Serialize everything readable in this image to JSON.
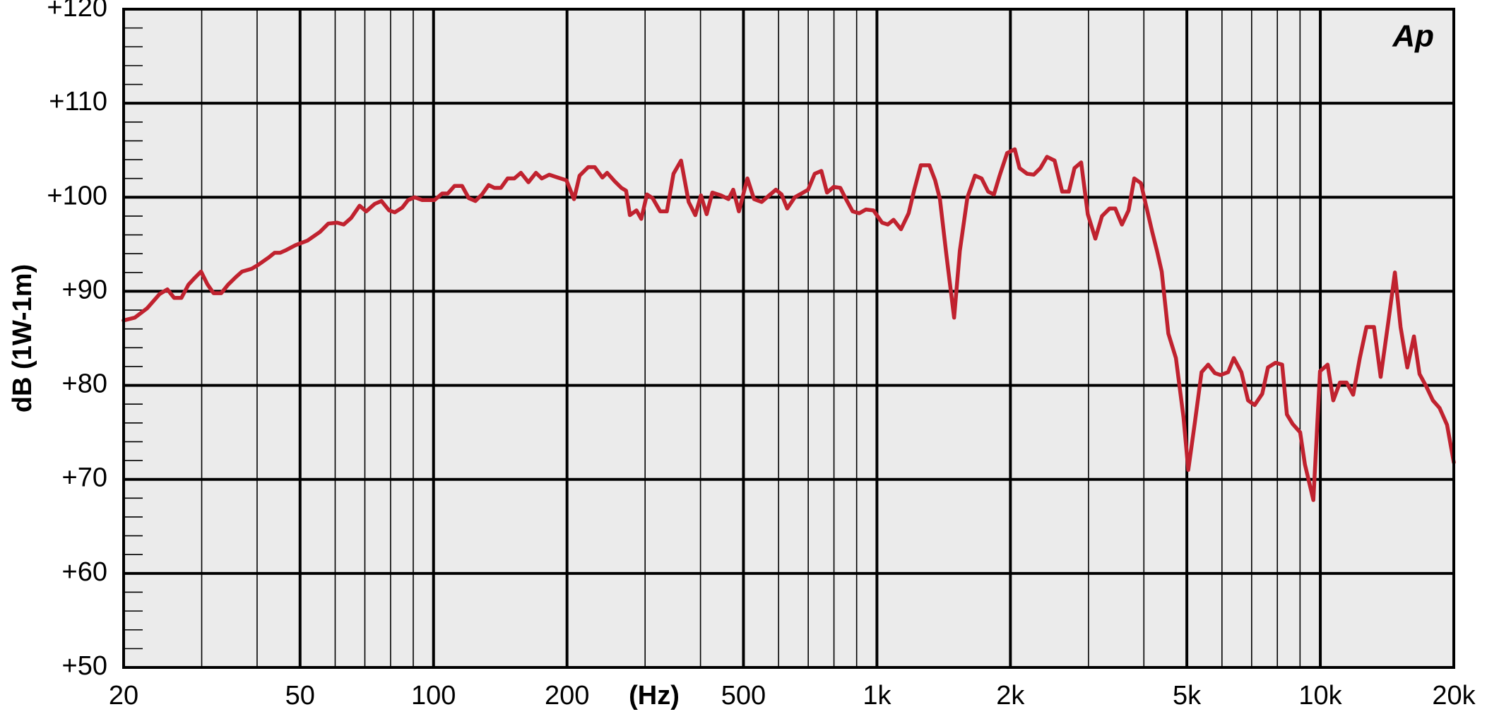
{
  "chart_data": {
    "type": "line",
    "xlabel": "(Hz)",
    "ylabel": "dB (1W-1m)",
    "logo": "Ap",
    "color": "#c0222f",
    "xscale": "log",
    "grid": true,
    "xlim": [
      20,
      20000
    ],
    "ylim": [
      50,
      120
    ],
    "xticks": [
      20,
      50,
      100,
      200,
      500,
      {
        "value": 1000,
        "label": "1k"
      },
      {
        "value": 2000,
        "label": "2k"
      },
      {
        "value": 5000,
        "label": "5k"
      },
      {
        "value": 10000,
        "label": "10k"
      },
      {
        "value": 20000,
        "label": "20k"
      }
    ],
    "xminor_ticks": [
      30,
      40,
      60,
      70,
      80,
      90,
      300,
      400,
      600,
      700,
      800,
      900,
      3000,
      4000,
      6000,
      7000,
      8000,
      9000
    ],
    "yticks": [
      {
        "value": 50,
        "label": "+50"
      },
      {
        "value": 60,
        "label": "+60"
      },
      {
        "value": 70,
        "label": "+70"
      },
      {
        "value": 80,
        "label": "+80"
      },
      {
        "value": 90,
        "label": "+90"
      },
      {
        "value": 100,
        "label": "+100"
      },
      {
        "value": 110,
        "label": "+110"
      },
      {
        "value": 120,
        "label": "+120"
      }
    ],
    "yminor_ticks": [
      52,
      54,
      56,
      58,
      62,
      64,
      66,
      68,
      72,
      74,
      76,
      78,
      82,
      84,
      86,
      88,
      92,
      94,
      96,
      98,
      102,
      104,
      106,
      108,
      112,
      114,
      116,
      118
    ],
    "x": [
      20,
      21.2,
      22.6,
      24.1,
      25.1,
      26.0,
      27.0,
      28.0,
      28.9,
      29.9,
      30.9,
      31.9,
      33.2,
      34.4,
      35.8,
      37.0,
      38.9,
      40.2,
      42.5,
      43.8,
      45.1,
      46.6,
      48.8,
      52.0,
      55.4,
      57.9,
      60.6,
      62.7,
      65.2,
      68.1,
      70.5,
      73.7,
      76.3,
      79.4,
      81.8,
      85.0,
      87.6,
      90.7,
      94.3,
      100.5,
      104.6,
      107.7,
      111.5,
      116.0,
      120.1,
      124.3,
      128.6,
      133.1,
      137.1,
      141.9,
      146.9,
      152.1,
      157.4,
      163.7,
      170.2,
      175.4,
      182.4,
      190.6,
      199.4,
      207.4,
      213.5,
      223.2,
      231.0,
      240.4,
      246.3,
      256.2,
      265.2,
      271.8,
      277.2,
      286.9,
      294.1,
      302.9,
      312.0,
      324.5,
      335.9,
      347.7,
      361.6,
      376.2,
      389.4,
      401.0,
      413.0,
      425.4,
      444.7,
      462.6,
      474.1,
      488.3,
      510.4,
      528.3,
      549.5,
      571.5,
      591.6,
      609.4,
      627.6,
      652.8,
      675.7,
      699.4,
      723.9,
      749.3,
      771.7,
      798.8,
      826.8,
      851.6,
      881.5,
      912.4,
      944.4,
      982.4,
      1027,
      1058,
      1090,
      1133,
      1179,
      1214,
      1256,
      1313,
      1353,
      1387,
      1435,
      1493,
      1538,
      1600,
      1664,
      1722,
      1782,
      1836,
      1891,
      1966,
      2046,
      2097,
      2181,
      2258,
      2337,
      2419,
      2516,
      2617,
      2709,
      2790,
      2888,
      2989,
      3109,
      3218,
      3347,
      3448,
      3569,
      3694,
      3805,
      3939,
      4037,
      4178,
      4282,
      4388,
      4542,
      4724,
      4914,
      5037,
      5214,
      5397,
      5586,
      5782,
      5955,
      6195,
      6381,
      6637,
      6870,
      7111,
      7396,
      7618,
      7924,
      8202,
      8407,
      8659,
      9006,
      9230,
      9645,
      9984,
      10385,
      10696,
      11071,
      11459,
      11860,
      12276,
      12706,
      13216,
      13680,
      14230,
      14730,
      15170,
      15710,
      16260,
      16740,
      17330,
      17940,
      18570,
      19310,
      20000
    ],
    "values": [
      86.9,
      87.2,
      88.2,
      89.7,
      90.2,
      89.3,
      89.3,
      90.7,
      91.4,
      92.1,
      90.75,
      89.8,
      89.8,
      90.7,
      91.5,
      92.1,
      92.4,
      92.8,
      93.6,
      94.1,
      94.1,
      94.4,
      94.9,
      95.4,
      96.3,
      97.2,
      97.3,
      97.1,
      97.8,
      99.1,
      98.5,
      99.3,
      99.6,
      98.6,
      98.4,
      98.9,
      99.7,
      100.0,
      99.7,
      99.7,
      100.4,
      100.4,
      101.2,
      101.2,
      99.9,
      99.6,
      100.3,
      101.3,
      101.0,
      101.0,
      102.0,
      102.0,
      102.6,
      101.6,
      102.6,
      102.0,
      102.4,
      102.1,
      101.8,
      99.8,
      102.3,
      103.2,
      103.2,
      102.1,
      102.6,
      101.7,
      101.0,
      100.7,
      98.1,
      98.6,
      97.7,
      100.3,
      99.9,
      98.5,
      98.5,
      102.5,
      103.9,
      99.5,
      98.1,
      100.2,
      98.2,
      100.5,
      100.2,
      99.8,
      100.8,
      98.5,
      102.0,
      99.8,
      99.5,
      100.2,
      100.8,
      100.3,
      98.8,
      100.0,
      100.4,
      100.8,
      102.5,
      102.8,
      100.5,
      101.1,
      101.0,
      99.8,
      98.5,
      98.3,
      98.7,
      98.6,
      97.3,
      97.1,
      97.6,
      96.6,
      98.3,
      100.8,
      103.4,
      103.4,
      101.8,
      99.8,
      93.8,
      87.2,
      94.3,
      100.0,
      102.3,
      102.0,
      100.6,
      100.3,
      102.3,
      104.7,
      105.1,
      103.1,
      102.5,
      102.4,
      103.1,
      104.3,
      103.9,
      100.6,
      100.6,
      103.1,
      103.7,
      98.2,
      95.6,
      98.0,
      98.8,
      98.8,
      97.1,
      98.6,
      102.0,
      101.5,
      99.3,
      96.3,
      94.3,
      92.1,
      85.5,
      82.9,
      76.6,
      71.0,
      76.1,
      81.4,
      82.2,
      81.3,
      81.1,
      81.4,
      82.9,
      81.4,
      78.4,
      77.9,
      79.1,
      81.9,
      82.4,
      82.2,
      76.9,
      75.9,
      75.0,
      71.6,
      67.8,
      81.5,
      82.2,
      78.4,
      80.3,
      80.3,
      79.0,
      82.9,
      86.2,
      86.2,
      80.9,
      86.7,
      92.0,
      86.2,
      81.9,
      85.2,
      81.2,
      79.9,
      78.4,
      77.6,
      75.8,
      71.8
    ]
  }
}
